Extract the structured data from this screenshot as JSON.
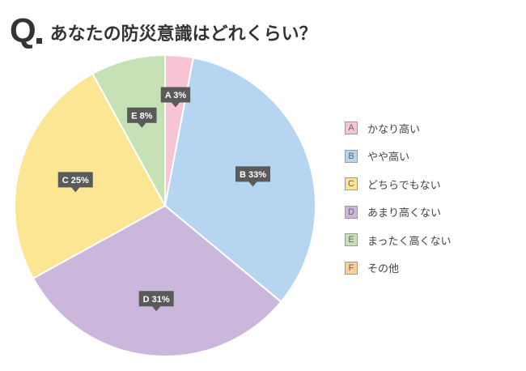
{
  "header": {
    "q_mark": "Q",
    "title": "あなたの防災意識はどれくらい？"
  },
  "chart_data": {
    "type": "pie",
    "title": "あなたの防災意識はどれくらい？",
    "start_angle_deg": 0,
    "direction": "clockwise",
    "legend_position": "right",
    "slices": [
      {
        "key": "A",
        "name": "かなり高い",
        "value": 3,
        "label": "A 3%",
        "color": "#f6c4d2"
      },
      {
        "key": "B",
        "name": "やや高い",
        "value": 33,
        "label": "B 33%",
        "color": "#b6d5f0"
      },
      {
        "key": "D",
        "name": "あまり高くない",
        "value": 31,
        "label": "D 31%",
        "color": "#cbb6dc"
      },
      {
        "key": "C",
        "name": "どちらでもない",
        "value": 25,
        "label": "C 25%",
        "color": "#fce593"
      },
      {
        "key": "E",
        "name": "まったく高くない",
        "value": 8,
        "label": "E 8%",
        "color": "#c6e1b5"
      }
    ],
    "legend": [
      {
        "key": "A",
        "name": "かなり高い",
        "color": "#f6c4d2"
      },
      {
        "key": "B",
        "name": "やや高い",
        "color": "#b6d5f0"
      },
      {
        "key": "C",
        "name": "どちらでもない",
        "color": "#fce593"
      },
      {
        "key": "D",
        "name": "あまり高くない",
        "color": "#cbb6dc"
      },
      {
        "key": "E",
        "name": "まったく高くない",
        "color": "#c6e1b5"
      },
      {
        "key": "F",
        "name": "その他",
        "color": "#f8cf98"
      }
    ]
  }
}
